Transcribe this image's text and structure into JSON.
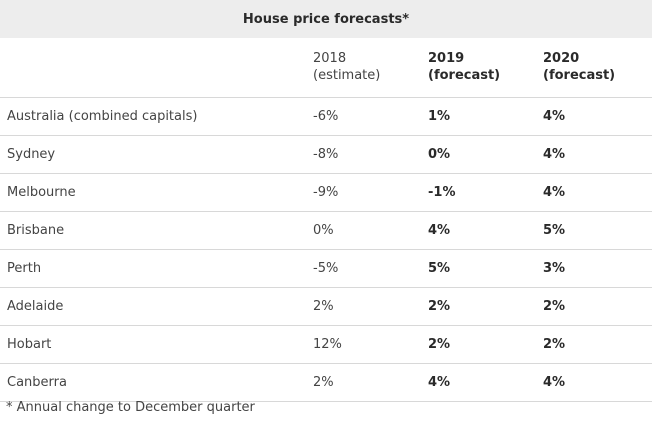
{
  "chart_data": {
    "type": "table",
    "title": "House price forecasts*",
    "columns": [
      {
        "line1": "",
        "line2": ""
      },
      {
        "line1": "2018",
        "line2": "(estimate)"
      },
      {
        "line1": "2019",
        "line2": "(forecast)"
      },
      {
        "line1": "2020",
        "line2": "(forecast)"
      }
    ],
    "rows": [
      [
        "Australia (combined capitals)",
        "-6%",
        "1%",
        "4%"
      ],
      [
        "Sydney",
        "-8%",
        "0%",
        "4%"
      ],
      [
        "Melbourne",
        "-9%",
        "-1%",
        "4%"
      ],
      [
        "Brisbane",
        "0%",
        "4%",
        "5%"
      ],
      [
        "Perth",
        "-5%",
        "5%",
        "3%"
      ],
      [
        "Adelaide",
        "2%",
        "2%",
        "2%"
      ],
      [
        "Hobart",
        "12%",
        "2%",
        "2%"
      ],
      [
        "Canberra",
        "2%",
        "4%",
        "4%"
      ]
    ],
    "footnote": "* Annual change to December quarter",
    "colors": {
      "title_bar": "#ededed",
      "rule": "#d8d8d8",
      "text": "#444444"
    }
  }
}
